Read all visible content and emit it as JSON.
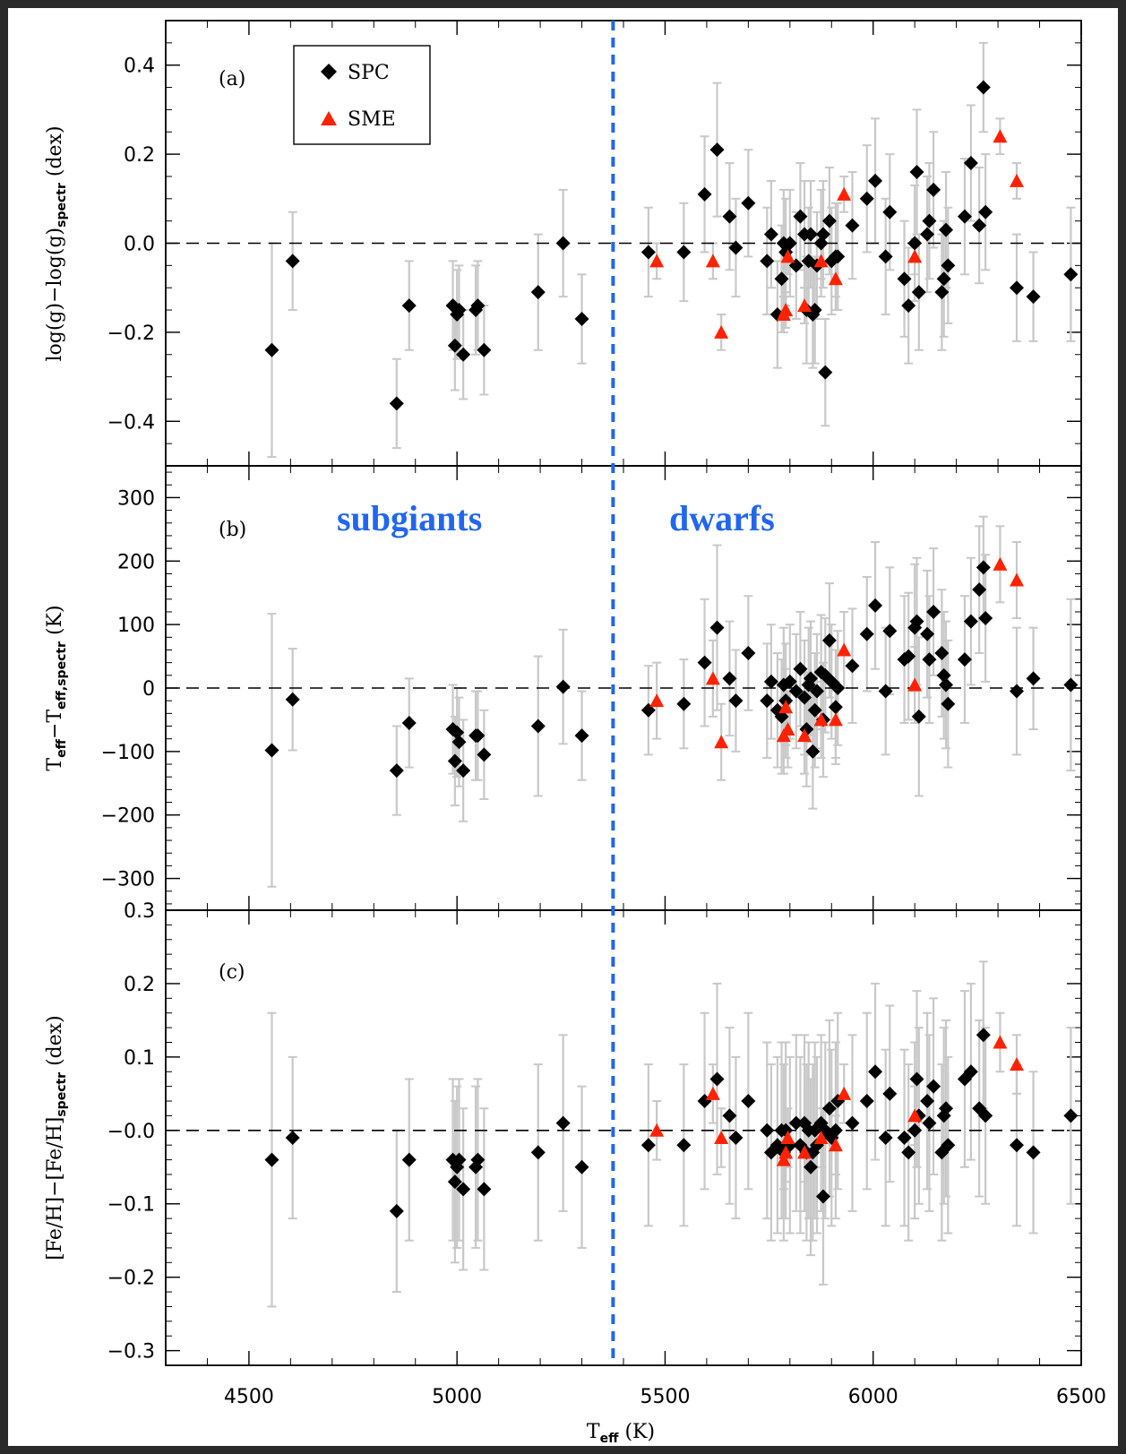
{
  "colors": {
    "spc": "#000000",
    "sme": "#ff2200",
    "errorbar": "#c8c8c8",
    "divider": "#2266ee",
    "zero_line": "#000000"
  },
  "legend": {
    "spc_label": "SPC",
    "sme_label": "SME",
    "spc_icon": "black-diamond-icon",
    "sme_icon": "red-triangle-icon"
  },
  "region_labels": {
    "left": "subgiants",
    "right": "dwarfs"
  },
  "x_axis": {
    "label_main": "T",
    "label_sub": "eff",
    "label_unit": "(K)",
    "ticks": [
      "4500",
      "5000",
      "5500",
      "6000",
      "6500"
    ],
    "range": [
      4300,
      6500
    ]
  },
  "panels": [
    {
      "tag": "(a)",
      "ylabel": {
        "base": "log(g)−log(g)",
        "sub": "spectr",
        "unit": "(dex)"
      },
      "ylim": [
        -0.5,
        0.5
      ],
      "ticks": [
        "0.4",
        "0.2",
        "0.0",
        "−0.2",
        "−0.4"
      ]
    },
    {
      "tag": "(b)",
      "ylabel": {
        "base1": "T",
        "sub1": "eff",
        "mid": "−T",
        "sub2": "eff,spectr",
        "unit": "(K)"
      },
      "ylim": [
        -350,
        350
      ],
      "ticks": [
        "300",
        "200",
        "100",
        "0",
        "−100",
        "−200",
        "−300"
      ]
    },
    {
      "tag": "(c)",
      "ylabel": {
        "base": "[Fe/H]−[Fe/H]",
        "sub": "spectr",
        "unit": "(dex)"
      },
      "ylim": [
        -0.32,
        0.3
      ],
      "ticks": [
        "0.3",
        "0.2",
        "0.1",
        "−0.0",
        "−0.1",
        "−0.2",
        "−0.3"
      ]
    }
  ],
  "chart_data": {
    "type": "scatter",
    "x_divider": 5375,
    "series": [
      {
        "name": "SPC",
        "x": [
          4555,
          4605,
          4855,
          4885,
          4990,
          4995,
          5000,
          5005,
          5015,
          5045,
          5050,
          5065,
          5195,
          5255,
          5300,
          5460,
          5545,
          5595,
          5625,
          5655,
          5670,
          5700,
          5745,
          5755,
          5770,
          5780,
          5785,
          5790,
          5800,
          5815,
          5825,
          5835,
          5840,
          5845,
          5850,
          5855,
          5860,
          5865,
          5875,
          5880,
          5885,
          5895,
          5900,
          5910,
          5915,
          5950,
          5985,
          6005,
          6030,
          6040,
          6075,
          6085,
          6100,
          6105,
          6110,
          6130,
          6135,
          6145,
          6165,
          6170,
          6175,
          6180,
          6220,
          6235,
          6255,
          6265,
          6270,
          6345,
          6385,
          6475
        ],
        "panel_a": [
          -0.24,
          -0.04,
          -0.36,
          -0.14,
          -0.14,
          -0.23,
          -0.16,
          -0.15,
          -0.25,
          -0.15,
          -0.14,
          -0.24,
          -0.11,
          0.0,
          -0.17,
          -0.02,
          -0.02,
          0.11,
          0.21,
          0.06,
          -0.01,
          0.09,
          -0.04,
          0.02,
          -0.16,
          -0.08,
          0.0,
          -0.02,
          0.0,
          -0.05,
          0.06,
          0.02,
          -0.15,
          -0.04,
          0.02,
          -0.16,
          -0.15,
          -0.05,
          0.0,
          0.02,
          -0.29,
          0.05,
          -0.04,
          -0.03,
          -0.03,
          0.04,
          0.1,
          0.14,
          -0.03,
          0.07,
          -0.08,
          -0.14,
          0.0,
          0.16,
          -0.11,
          0.02,
          0.05,
          0.12,
          -0.11,
          -0.08,
          0.03,
          -0.05,
          0.06,
          0.18,
          0.04,
          0.35,
          0.07,
          -0.1,
          -0.12,
          -0.07
        ],
        "panel_b": [
          -98,
          -18,
          -130,
          -55,
          -65,
          -115,
          -70,
          -85,
          -130,
          -75,
          -75,
          -105,
          -60,
          2,
          -75,
          -35,
          -25,
          40,
          95,
          15,
          -20,
          55,
          -20,
          10,
          -35,
          -45,
          5,
          -20,
          10,
          -5,
          30,
          -15,
          -65,
          5,
          15,
          -100,
          -35,
          -5,
          25,
          -50,
          20,
          75,
          10,
          -30,
          0,
          35,
          85,
          130,
          -5,
          90,
          45,
          50,
          95,
          105,
          -45,
          85,
          45,
          120,
          55,
          20,
          5,
          -25,
          45,
          105,
          155,
          190,
          110,
          -5,
          15,
          5
        ],
        "panel_c": [
          -0.04,
          -0.01,
          -0.11,
          -0.04,
          -0.04,
          -0.07,
          -0.05,
          -0.04,
          -0.08,
          -0.05,
          -0.04,
          -0.08,
          -0.03,
          0.01,
          -0.05,
          -0.02,
          -0.02,
          0.04,
          0.07,
          0.02,
          -0.01,
          0.04,
          0.0,
          -0.03,
          -0.02,
          0.0,
          -0.03,
          0.0,
          -0.02,
          0.01,
          -0.02,
          0.01,
          -0.03,
          0.0,
          -0.05,
          -0.03,
          0.0,
          -0.02,
          0.01,
          -0.09,
          0.0,
          0.03,
          -0.01,
          0.0,
          0.04,
          0.01,
          0.04,
          0.08,
          -0.01,
          0.05,
          -0.01,
          -0.03,
          0.0,
          0.07,
          0.02,
          0.04,
          0.01,
          0.06,
          -0.03,
          0.02,
          0.03,
          -0.02,
          0.07,
          0.08,
          0.03,
          0.13,
          0.02,
          -0.02,
          -0.03,
          0.02
        ],
        "err_a": [
          0.24,
          0.11,
          0.1,
          0.1,
          0.1,
          0.1,
          0.1,
          0.1,
          0.1,
          0.1,
          0.1,
          0.1,
          0.13,
          0.12,
          0.1,
          0.1,
          0.11,
          0.13,
          0.15,
          0.12,
          0.11,
          0.12,
          0.12,
          0.12,
          0.12,
          0.12,
          0.12,
          0.12,
          0.12,
          0.12,
          0.12,
          0.12,
          0.12,
          0.12,
          0.12,
          0.12,
          0.12,
          0.12,
          0.12,
          0.12,
          0.12,
          0.12,
          0.12,
          0.12,
          0.12,
          0.12,
          0.12,
          0.14,
          0.13,
          0.13,
          0.13,
          0.13,
          0.13,
          0.14,
          0.13,
          0.13,
          0.13,
          0.13,
          0.13,
          0.13,
          0.13,
          0.13,
          0.13,
          0.13,
          0.13,
          0.1,
          0.13,
          0.12,
          0.1,
          0.15
        ],
        "err_b": [
          215,
          80,
          70,
          70,
          70,
          70,
          70,
          70,
          80,
          70,
          70,
          70,
          110,
          90,
          70,
          70,
          70,
          100,
          130,
          90,
          80,
          90,
          90,
          90,
          90,
          90,
          90,
          90,
          90,
          90,
          90,
          90,
          90,
          90,
          90,
          90,
          90,
          90,
          90,
          90,
          90,
          90,
          90,
          90,
          90,
          90,
          90,
          100,
          100,
          100,
          100,
          100,
          100,
          100,
          125,
          100,
          100,
          100,
          100,
          100,
          100,
          100,
          100,
          100,
          100,
          80,
          100,
          100,
          80,
          135
        ],
        "err_c": [
          0.2,
          0.11,
          0.11,
          0.11,
          0.11,
          0.11,
          0.11,
          0.11,
          0.11,
          0.11,
          0.11,
          0.11,
          0.12,
          0.12,
          0.11,
          0.11,
          0.11,
          0.12,
          0.13,
          0.12,
          0.11,
          0.12,
          0.12,
          0.12,
          0.12,
          0.12,
          0.12,
          0.12,
          0.12,
          0.12,
          0.12,
          0.12,
          0.12,
          0.12,
          0.12,
          0.12,
          0.12,
          0.12,
          0.12,
          0.12,
          0.12,
          0.12,
          0.12,
          0.12,
          0.12,
          0.12,
          0.12,
          0.12,
          0.12,
          0.12,
          0.12,
          0.12,
          0.12,
          0.12,
          0.12,
          0.12,
          0.12,
          0.12,
          0.12,
          0.12,
          0.12,
          0.12,
          0.12,
          0.12,
          0.12,
          0.1,
          0.12,
          0.11,
          0.11,
          0.12
        ]
      },
      {
        "name": "SME",
        "x": [
          5480,
          5615,
          5635,
          5785,
          5790,
          5795,
          5835,
          5875,
          5910,
          5930,
          6100,
          6305,
          6345
        ],
        "panel_a": [
          -0.04,
          -0.04,
          -0.2,
          -0.16,
          -0.15,
          -0.03,
          -0.14,
          -0.04,
          -0.08,
          0.11,
          -0.03,
          0.24,
          0.14
        ],
        "panel_b": [
          -20,
          15,
          -85,
          -75,
          -30,
          -65,
          -75,
          -50,
          -50,
          60,
          5,
          195,
          170
        ],
        "panel_c": [
          0.0,
          0.05,
          -0.01,
          -0.04,
          -0.03,
          -0.01,
          -0.03,
          -0.01,
          -0.02,
          0.05,
          0.02,
          0.12,
          0.09
        ],
        "err_a": [
          0.04,
          0.04,
          0.04,
          0.04,
          0.04,
          0.04,
          0.04,
          0.04,
          0.04,
          0.04,
          0.04,
          0.04,
          0.04
        ],
        "err_b": [
          60,
          60,
          60,
          60,
          60,
          60,
          60,
          60,
          60,
          60,
          60,
          60,
          60
        ],
        "err_c": [
          0.04,
          0.04,
          0.04,
          0.04,
          0.04,
          0.04,
          0.04,
          0.04,
          0.04,
          0.04,
          0.04,
          0.04,
          0.04
        ]
      }
    ]
  }
}
